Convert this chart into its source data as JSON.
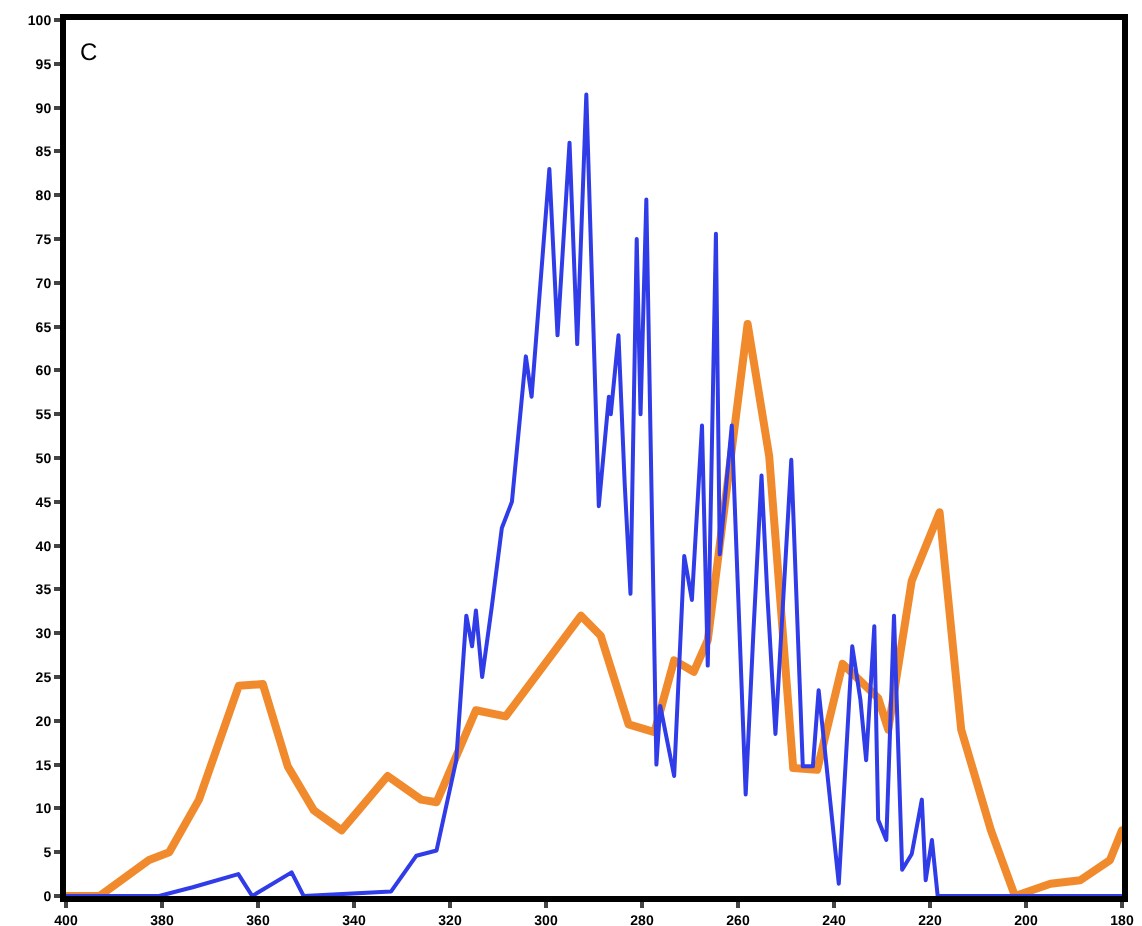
{
  "chart_data": {
    "type": "line",
    "annotations": [
      "C"
    ],
    "xlim": [
      400,
      180
    ],
    "xticks": [
      400,
      380,
      360,
      340,
      320,
      300,
      280,
      260,
      240,
      220,
      200,
      180
    ],
    "ylim": [
      0,
      100
    ],
    "yticks": [
      0,
      5,
      10,
      15,
      20,
      25,
      30,
      35,
      40,
      45,
      50,
      55,
      60,
      65,
      70,
      75,
      80,
      85,
      90,
      95,
      100
    ],
    "grid": false,
    "marker": "none",
    "line_style": "solid",
    "series": [
      {
        "color": "#f08a2c",
        "x": [
          400,
          393,
          382.7,
          378.5,
          372.3,
          364,
          359,
          353.8,
          348.4,
          342.6,
          333,
          326,
          322.8,
          314.6,
          308.4,
          292.7,
          288.6,
          282.8,
          277.4,
          273.3,
          269.2,
          266.3,
          258,
          253.5,
          248.5,
          243.5,
          238.2,
          230.8,
          228.7,
          223.8,
          218,
          213.5,
          207.3,
          202.3,
          194.9,
          188.7,
          182.5,
          180
        ],
        "values": [
          0,
          0,
          4.1,
          5,
          11,
          24,
          24.2,
          14.8,
          9.8,
          7.5,
          13.7,
          11,
          10.7,
          21.2,
          20.5,
          32,
          29.7,
          19.6,
          18.7,
          26.9,
          25.6,
          29.2,
          65.3,
          50.2,
          14.6,
          14.4,
          26.5,
          22.6,
          19,
          36,
          43.8,
          19,
          7.5,
          0,
          1.4,
          1.8,
          4.1,
          7.5
        ]
      },
      {
        "color": "#2f3ce8",
        "x": [
          400,
          380.6,
          373.6,
          364.1,
          361.2,
          353,
          350.5,
          332.3,
          327,
          322.8,
          318.7,
          316.6,
          315.4,
          314.6,
          313.3,
          311.3,
          309.2,
          307.1,
          304.2,
          303,
          299.3,
          297.6,
          295.1,
          293.5,
          291.6,
          289,
          286.9,
          286.5,
          284.9,
          283.6,
          282.4,
          281.1,
          280.3,
          279.1,
          277,
          276.2,
          273.3,
          271.2,
          269.6,
          267.5,
          266.3,
          264.6,
          263.8,
          261.3,
          258.4,
          256.8,
          255.1,
          253.9,
          252.2,
          248.9,
          246.5,
          244.4,
          243.2,
          239,
          236.2,
          234.5,
          233.3,
          231.6,
          230.8,
          229.1,
          227.5,
          225.8,
          223.8,
          221.7,
          220.9,
          219.6,
          218.4,
          180
        ],
        "values": [
          0,
          0,
          1,
          2.5,
          0,
          2.7,
          0,
          0.5,
          4.6,
          5.2,
          15.5,
          32,
          28.5,
          32.6,
          25,
          33,
          42,
          45,
          61.6,
          57,
          83,
          64,
          86,
          63,
          91.5,
          44.5,
          57,
          55,
          64,
          47,
          34.5,
          75,
          55,
          79.5,
          15,
          21.7,
          13.7,
          38.8,
          33.8,
          53.7,
          26.3,
          75.6,
          39,
          53.7,
          11.6,
          30,
          48,
          34.5,
          18.5,
          49.8,
          14.8,
          14.8,
          23.5,
          1.4,
          28.5,
          22.4,
          15.5,
          30.8,
          8.7,
          6.4,
          32,
          3,
          4.8,
          11,
          1.8,
          6.4,
          0,
          0
        ]
      }
    ]
  }
}
